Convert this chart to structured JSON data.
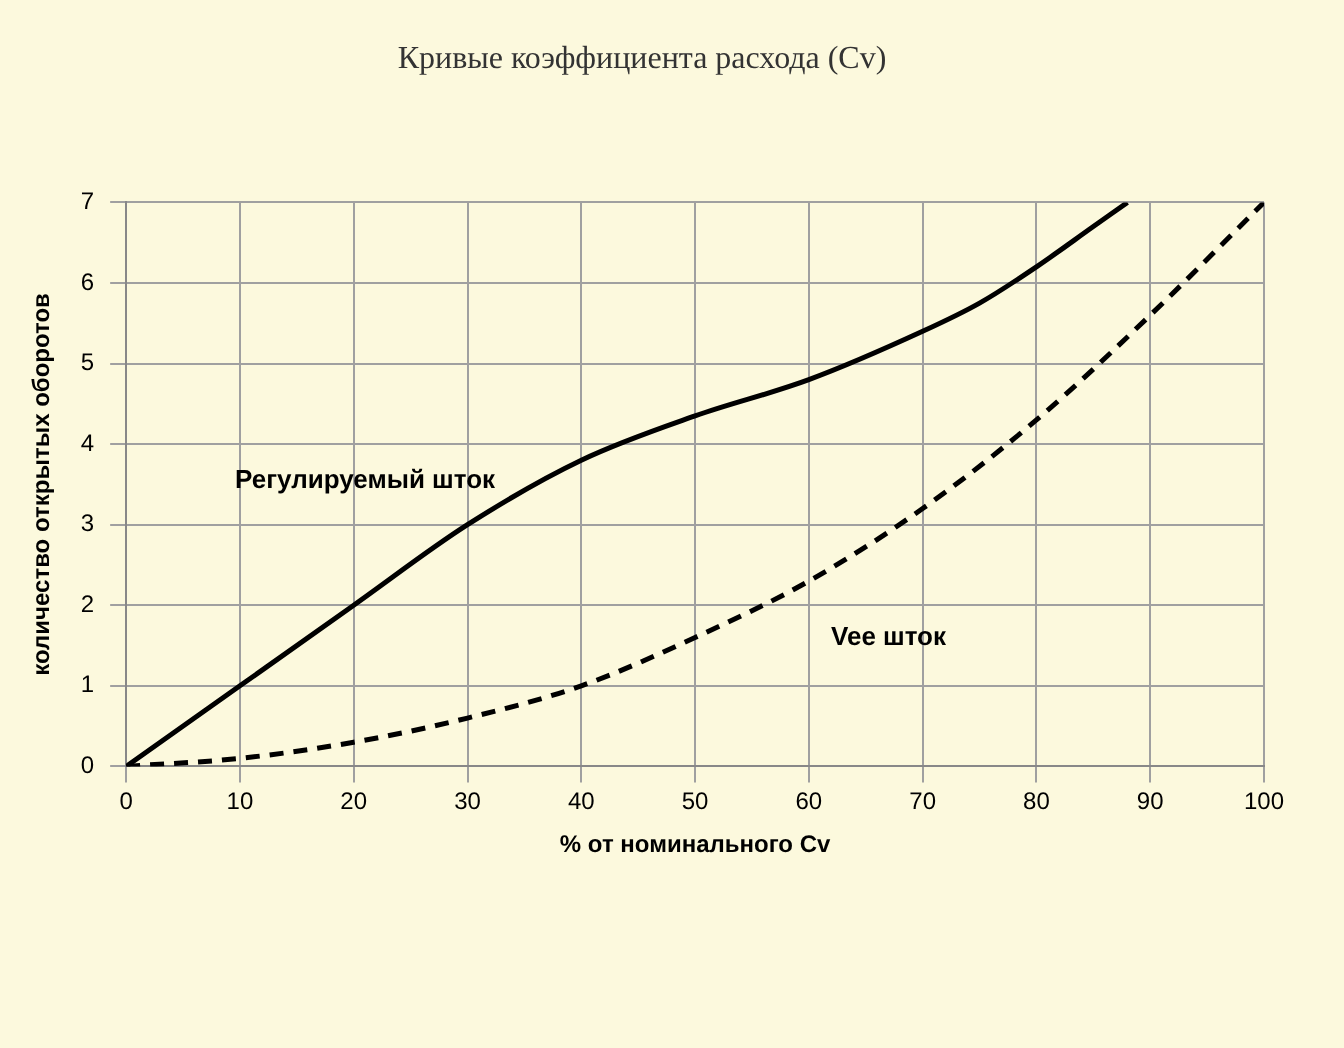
{
  "chart_data": {
    "type": "line",
    "title": "Кривые коэффициента расхода (Cv)",
    "xlabel": "% от номинального Cv",
    "ylabel": "количество открытых оборотов",
    "xlim": [
      0,
      100
    ],
    "xticks": [
      0,
      10,
      20,
      30,
      40,
      50,
      60,
      70,
      80,
      90,
      100
    ],
    "ylim": [
      0,
      7
    ],
    "yticks": [
      0,
      1,
      2,
      3,
      4,
      5,
      6,
      7
    ],
    "grid": true,
    "legend": false,
    "marker": "none",
    "series": [
      {
        "name": "Регулируемый шток",
        "color": "#000000",
        "line_style": "solid",
        "x": [
          0,
          10,
          20,
          30,
          40,
          50,
          60,
          70,
          75,
          80,
          85,
          88
        ],
        "values": [
          0,
          1,
          2,
          3,
          3.8,
          4.35,
          4.8,
          5.4,
          5.75,
          6.2,
          6.7,
          7
        ]
      },
      {
        "name": "Vee шток",
        "color": "#000000",
        "line_style": "dashed",
        "x": [
          0,
          10,
          20,
          30,
          40,
          50,
          60,
          70,
          80,
          90,
          100
        ],
        "values": [
          0,
          0.1,
          0.3,
          0.6,
          1,
          1.6,
          2.3,
          3.2,
          4.3,
          5.6,
          7
        ]
      }
    ]
  }
}
